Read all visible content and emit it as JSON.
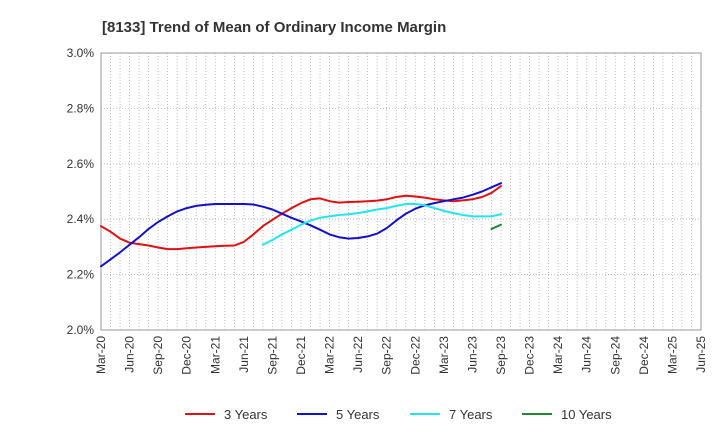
{
  "chart_data": {
    "type": "line",
    "title": "[8133]  Trend of Mean of Ordinary Income Margin",
    "xlabel": "",
    "ylabel": "",
    "x_ticks": [
      "Mar-20",
      "Jun-20",
      "Sep-20",
      "Dec-20",
      "Mar-21",
      "Jun-21",
      "Sep-21",
      "Dec-21",
      "Mar-22",
      "Jun-22",
      "Sep-22",
      "Dec-22",
      "Mar-23",
      "Jun-23",
      "Sep-23",
      "Dec-23",
      "Mar-24",
      "Jun-24",
      "Sep-24",
      "Dec-24",
      "Mar-25",
      "Jun-25"
    ],
    "y_ticks": [
      "2.0%",
      "2.2%",
      "2.4%",
      "2.6%",
      "2.8%",
      "3.0%"
    ],
    "ylim": [
      2.0,
      3.0
    ],
    "grid": true,
    "legend_position": "bottom",
    "series": [
      {
        "name": "3 Years",
        "color": "#dd1111",
        "values": [
          2.375,
          2.355,
          2.33,
          2.315,
          2.31,
          2.305,
          2.298,
          2.292,
          2.292,
          2.295,
          2.298,
          2.3,
          2.302,
          2.304,
          2.305,
          2.318,
          2.345,
          2.375,
          2.398,
          2.42,
          2.44,
          2.458,
          2.472,
          2.475,
          2.465,
          2.46,
          2.462,
          2.463,
          2.465,
          2.467,
          2.472,
          2.48,
          2.485,
          2.482,
          2.478,
          2.472,
          2.468,
          2.465,
          2.468,
          2.472,
          2.48,
          2.495,
          2.52
        ]
      },
      {
        "name": "5 Years",
        "color": "#1111cc",
        "values": [
          2.23,
          2.255,
          2.28,
          2.308,
          2.335,
          2.365,
          2.39,
          2.41,
          2.428,
          2.44,
          2.448,
          2.452,
          2.455,
          2.455,
          2.455,
          2.455,
          2.453,
          2.445,
          2.435,
          2.42,
          2.405,
          2.392,
          2.378,
          2.362,
          2.345,
          2.335,
          2.33,
          2.332,
          2.338,
          2.348,
          2.368,
          2.395,
          2.42,
          2.438,
          2.45,
          2.458,
          2.465,
          2.472,
          2.478,
          2.488,
          2.5,
          2.515,
          2.53
        ]
      },
      {
        "name": "7 Years",
        "color": "#22e5f0",
        "values": [
          null,
          null,
          null,
          null,
          null,
          null,
          null,
          null,
          null,
          null,
          null,
          null,
          null,
          null,
          null,
          null,
          null,
          2.308,
          2.325,
          2.345,
          2.362,
          2.38,
          2.395,
          2.405,
          2.41,
          2.415,
          2.418,
          2.422,
          2.428,
          2.435,
          2.44,
          2.448,
          2.455,
          2.455,
          2.45,
          2.44,
          2.43,
          2.422,
          2.415,
          2.41,
          2.41,
          2.41,
          2.418
        ]
      },
      {
        "name": "10 Years",
        "color": "#228833",
        "values": [
          null,
          null,
          null,
          null,
          null,
          null,
          null,
          null,
          null,
          null,
          null,
          null,
          null,
          null,
          null,
          null,
          null,
          null,
          null,
          null,
          null,
          null,
          null,
          null,
          null,
          null,
          null,
          null,
          null,
          null,
          null,
          null,
          null,
          null,
          null,
          null,
          null,
          null,
          null,
          null,
          null,
          2.365,
          2.38
        ]
      }
    ]
  }
}
